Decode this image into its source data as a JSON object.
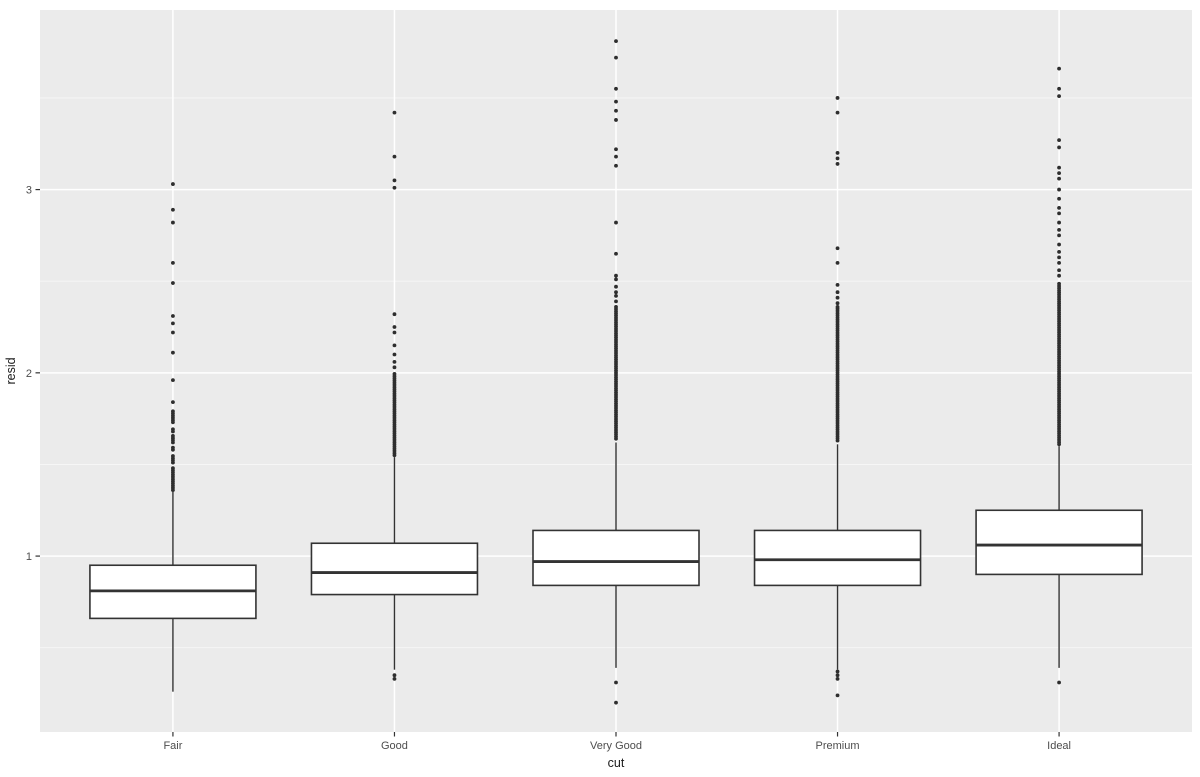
{
  "axes": {
    "x_title": "cut",
    "y_title": "resid"
  },
  "colors": {
    "background": "#FFFFFF",
    "panel": "#EBEBEB",
    "grid_major": "#FFFFFF",
    "grid_minor": "#FFFFFF",
    "box_fill": "#FFFFFF",
    "box_stroke": "#333333",
    "outlier": "#2E2E2E",
    "tick_mark": "#333333",
    "tick_label": "#4D4D4D",
    "axis_title": "#1A1A1A"
  },
  "chart_data": {
    "type": "boxplot",
    "title": "",
    "xlabel": "cut",
    "ylabel": "resid",
    "categories": [
      "Fair",
      "Good",
      "Very Good",
      "Premium",
      "Ideal"
    ],
    "y_tick_values": [
      1,
      2,
      3
    ],
    "y_tick_labels": [
      "1",
      "2",
      "3"
    ],
    "y_minor_tick_values": [
      0.5,
      1.5,
      2.5,
      3.5
    ],
    "ylim": [
      0.04,
      3.98
    ],
    "grid": "on",
    "legend": "none",
    "band_step": 0.012,
    "series": [
      {
        "category": "Fair",
        "q1": 0.66,
        "median": 0.81,
        "q3": 0.95,
        "whisker_low": 0.26,
        "whisker_high": 1.35,
        "outliers_low": [],
        "outliers_high": [
          1.84,
          1.96,
          2.11,
          2.22,
          2.27,
          2.31,
          2.49,
          2.6,
          2.82,
          2.89,
          3.03
        ],
        "outlier_bands_high": [
          {
            "from": 1.36,
            "to": 1.48
          },
          {
            "from": 1.51,
            "to": 1.55
          },
          {
            "from": 1.58,
            "to": 1.6
          },
          {
            "from": 1.62,
            "to": 1.66
          },
          {
            "from": 1.68,
            "to": 1.7
          },
          {
            "from": 1.73,
            "to": 1.8
          }
        ]
      },
      {
        "category": "Good",
        "q1": 0.79,
        "median": 0.91,
        "q3": 1.07,
        "whisker_low": 0.38,
        "whisker_high": 1.54,
        "outliers_low": [
          0.35,
          0.33
        ],
        "outliers_high": [
          2.03,
          2.06,
          2.1,
          2.15,
          2.22,
          2.25,
          2.32,
          3.01,
          3.05,
          3.18,
          3.42
        ],
        "outlier_bands_high": [
          {
            "from": 1.55,
            "to": 2.0
          }
        ]
      },
      {
        "category": "Very Good",
        "q1": 0.84,
        "median": 0.97,
        "q3": 1.14,
        "whisker_low": 0.39,
        "whisker_high": 1.62,
        "outliers_low": [
          0.31,
          0.2
        ],
        "outliers_high": [
          2.36,
          2.39,
          2.42,
          2.44,
          2.47,
          2.51,
          2.53,
          2.65,
          2.82,
          3.13,
          3.18,
          3.22,
          3.38,
          3.43,
          3.48,
          3.55,
          3.72,
          3.81
        ],
        "outlier_bands_high": [
          {
            "from": 1.64,
            "to": 2.35
          }
        ]
      },
      {
        "category": "Premium",
        "q1": 0.84,
        "median": 0.98,
        "q3": 1.14,
        "whisker_low": 0.38,
        "whisker_high": 1.61,
        "outliers_low": [
          0.37,
          0.35,
          0.33,
          0.24
        ],
        "outliers_high": [
          2.36,
          2.38,
          2.41,
          2.44,
          2.48,
          2.6,
          2.68,
          3.14,
          3.17,
          3.2,
          3.42,
          3.5
        ],
        "outlier_bands_high": [
          {
            "from": 1.63,
            "to": 2.35
          }
        ]
      },
      {
        "category": "Ideal",
        "q1": 0.9,
        "median": 1.06,
        "q3": 1.25,
        "whisker_low": 0.39,
        "whisker_high": 1.6,
        "outliers_low": [
          0.31
        ],
        "outliers_high": [
          2.53,
          2.56,
          2.6,
          2.63,
          2.66,
          2.7,
          2.75,
          2.78,
          2.82,
          2.87,
          2.9,
          2.95,
          3.0,
          3.06,
          3.09,
          3.12,
          3.23,
          3.27,
          3.51,
          3.55,
          3.66
        ],
        "outlier_bands_high": [
          {
            "from": 1.61,
            "to": 2.49
          }
        ]
      }
    ]
  }
}
